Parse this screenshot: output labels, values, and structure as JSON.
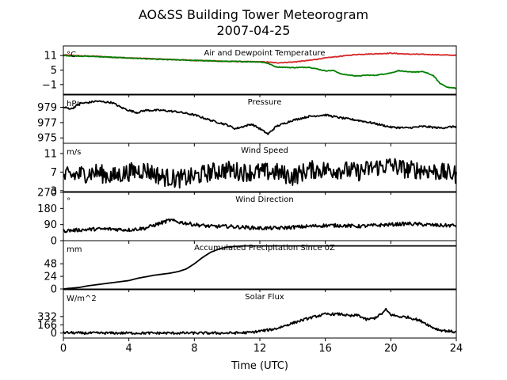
{
  "figure": {
    "title_line1": "AO&SS Building Tower Meteorogram",
    "title_line2": "2007-04-25",
    "xlabel": "Time (UTC)"
  },
  "chart_data": [
    {
      "type": "line",
      "title": "Air and Dewpoint Temperature",
      "unit": "°C",
      "ylim": [
        -5,
        15
      ],
      "yticks": [
        11,
        5,
        -1
      ],
      "ytick_labels": [
        "11",
        "5",
        "−1"
      ],
      "xlim": [
        0,
        24
      ],
      "series": [
        {
          "color": "#d62728",
          "noise": 0.15,
          "x": [
            0,
            1,
            2,
            3,
            4,
            5,
            6,
            7,
            8,
            9,
            10,
            11,
            12,
            12.5,
            13,
            14,
            15,
            16,
            17,
            18,
            19,
            20,
            21,
            22,
            23,
            24
          ],
          "y": [
            11.3,
            10.9,
            10.7,
            10.3,
            10.0,
            9.8,
            9.5,
            9.3,
            9.0,
            8.8,
            8.6,
            8.5,
            8.4,
            8.3,
            8.0,
            8.3,
            9.0,
            10.0,
            10.8,
            11.5,
            11.7,
            12.0,
            11.6,
            11.5,
            11.3,
            11.1
          ]
        },
        {
          "color": "#008000",
          "noise": 0.15,
          "x": [
            0,
            1,
            2,
            3,
            4,
            5,
            6,
            7,
            8,
            9,
            10,
            11,
            12,
            12.4,
            13,
            14,
            15,
            16,
            16.5,
            17,
            18,
            18.5,
            19,
            20,
            20.5,
            21,
            22,
            22.6,
            23,
            23.5,
            24
          ],
          "y": [
            11.0,
            10.8,
            10.6,
            10.3,
            10.0,
            9.7,
            9.4,
            9.2,
            9.0,
            8.8,
            8.6,
            8.5,
            8.4,
            8.0,
            6.3,
            6.0,
            6.2,
            4.7,
            4.8,
            3.3,
            2.5,
            2.9,
            2.8,
            3.8,
            4.8,
            4.2,
            4.3,
            2.7,
            -0.5,
            -2.2,
            -2.5
          ]
        }
      ]
    },
    {
      "type": "line",
      "title": "Pressure",
      "unit": "hPa",
      "ylim": [
        974.3,
        980.6
      ],
      "yticks": [
        979,
        977,
        975
      ],
      "ytick_labels": [
        "979",
        "977",
        "975"
      ],
      "xlim": [
        0,
        24
      ],
      "series": [
        {
          "color": "#000000",
          "noise": 0.12,
          "x": [
            0,
            0.5,
            1,
            1.5,
            2,
            3,
            3.5,
            4,
            4.5,
            5,
            6,
            7,
            8,
            9,
            10,
            10.5,
            11,
            11.5,
            12,
            12.5,
            13,
            14,
            15,
            16,
            17,
            18,
            19,
            20,
            21,
            22,
            23,
            24
          ],
          "y": [
            979.0,
            978.8,
            979.5,
            979.6,
            979.8,
            979.6,
            979.0,
            978.6,
            978.3,
            978.6,
            978.6,
            978.4,
            978.0,
            977.3,
            976.7,
            976.2,
            976.5,
            976.8,
            976.2,
            975.5,
            976.5,
            977.3,
            977.8,
            978.0,
            977.6,
            977.3,
            976.9,
            976.4,
            976.3,
            976.5,
            976.3,
            976.5
          ]
        }
      ]
    },
    {
      "type": "line",
      "title": "Wind Speed",
      "unit": "m/s",
      "ylim": [
        2.8,
        13.2
      ],
      "yticks": [
        11,
        7,
        3
      ],
      "ytick_labels": [
        "11",
        "7",
        "3"
      ],
      "xlim": [
        0,
        24
      ],
      "series": [
        {
          "color": "#000000",
          "noise": 2.0,
          "x": [
            0,
            1,
            2,
            3,
            4,
            5,
            6,
            7,
            8,
            9,
            10,
            11,
            12,
            13,
            14,
            15,
            16,
            17,
            18,
            19,
            20,
            21,
            22,
            23,
            24
          ],
          "y": [
            6.0,
            6.5,
            7.0,
            6.0,
            7.0,
            7.5,
            6.0,
            5.5,
            6.0,
            7.0,
            7.5,
            7.0,
            7.0,
            7.0,
            6.0,
            7.5,
            7.5,
            7.5,
            7.0,
            8.0,
            8.5,
            7.5,
            7.5,
            7.0,
            6.5
          ]
        }
      ]
    },
    {
      "type": "line",
      "title": "Wind Direction",
      "unit": "°",
      "ylim": [
        0,
        270
      ],
      "yticks": [
        270,
        180,
        90,
        0
      ],
      "ytick_labels": [
        "270",
        "180",
        "90",
        "0"
      ],
      "xlim": [
        0,
        24
      ],
      "series": [
        {
          "color": "#000000",
          "noise": 10,
          "x": [
            0,
            1,
            2,
            3,
            4,
            5,
            6,
            6.5,
            7,
            8,
            9,
            10,
            11,
            12,
            13,
            14,
            15,
            16,
            17,
            18,
            19,
            20,
            21,
            22,
            23,
            24
          ],
          "y": [
            55,
            60,
            65,
            65,
            60,
            70,
            100,
            115,
            105,
            90,
            80,
            80,
            75,
            70,
            70,
            75,
            80,
            85,
            85,
            80,
            85,
            90,
            95,
            90,
            85,
            85
          ]
        }
      ]
    },
    {
      "type": "line",
      "title": "Accumulated Precipitation Since 0Z",
      "unit": "mm",
      "ylim": [
        0,
        92
      ],
      "yticks": [
        48,
        24,
        0
      ],
      "ytick_labels": [
        "48",
        "24",
        "0"
      ],
      "xlim": [
        0,
        24
      ],
      "series": [
        {
          "color": "#000000",
          "noise": 0,
          "x": [
            0,
            0.3,
            1,
            1.5,
            2,
            2.5,
            3,
            3.5,
            4,
            4.5,
            5,
            5.5,
            6,
            6.5,
            7,
            7.5,
            8,
            8.5,
            9,
            9.5,
            10,
            10.5,
            11,
            24
          ],
          "y": [
            0,
            1,
            3,
            6,
            8,
            10,
            12,
            14,
            16,
            20,
            23,
            26,
            28,
            30,
            33,
            38,
            48,
            60,
            70,
            76,
            80,
            81,
            82,
            82
          ]
        }
      ]
    },
    {
      "type": "line",
      "title": "Solar Flux",
      "unit": "W/m^2",
      "ylim": [
        -100,
        870
      ],
      "yticks": [
        332,
        166,
        0
      ],
      "ytick_labels": [
        "332",
        "166",
        "0"
      ],
      "xlim": [
        0,
        24
      ],
      "series": [
        {
          "color": "#000000",
          "noise": 25,
          "x": [
            0,
            1,
            2,
            3,
            4,
            5,
            6,
            7,
            8,
            9,
            10,
            11,
            11.5,
            12,
            12.5,
            13,
            14,
            15,
            16,
            17,
            17.5,
            18,
            18.5,
            19,
            19.5,
            19.7,
            20,
            20.5,
            21,
            21.5,
            22,
            22.5,
            23,
            24
          ],
          "y": [
            10,
            0,
            0,
            0,
            0,
            0,
            0,
            0,
            0,
            0,
            0,
            5,
            15,
            40,
            60,
            90,
            200,
            300,
            380,
            380,
            340,
            360,
            270,
            300,
            400,
            470,
            370,
            330,
            320,
            280,
            220,
            120,
            60,
            20
          ]
        }
      ]
    }
  ],
  "xaxis": {
    "ticks": [
      0,
      4,
      8,
      12,
      16,
      20,
      24
    ],
    "tick_labels": [
      "0",
      "4",
      "8",
      "12",
      "16",
      "20",
      "24"
    ]
  }
}
